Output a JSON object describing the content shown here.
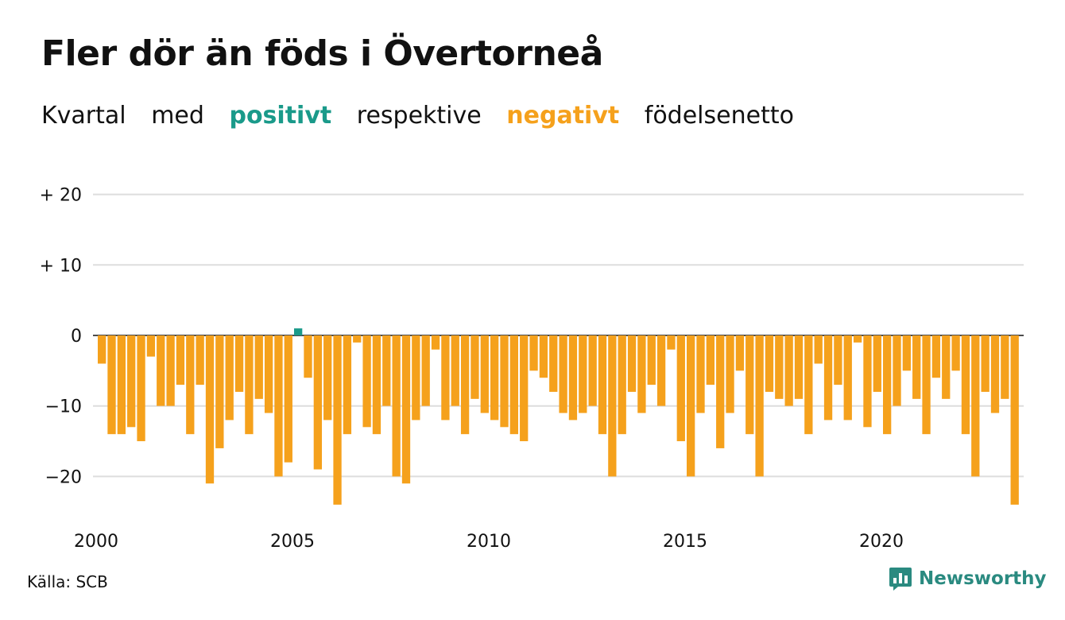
{
  "title": "Fler dör än föds i Övertorneå",
  "subtitle": {
    "w1": "Kvartal",
    "w2": "med",
    "positive": "positivt",
    "w3": "respektive",
    "negative": "negativt",
    "w4": "födelsenetto"
  },
  "source": "Källa: SCB",
  "brand": "Newsworthy",
  "colors": {
    "positive": "#1a9a8a",
    "negative": "#f5a11c",
    "grid": "#dddddd"
  },
  "chart_data": {
    "type": "bar",
    "x_start": "2000 Q1",
    "x_tick_labels": [
      "2000",
      "2005",
      "2010",
      "2015",
      "2020"
    ],
    "y_tick_values": [
      20,
      10,
      0,
      -10,
      -20
    ],
    "y_tick_labels": [
      "+ 20",
      "+ 10",
      "0",
      "−10",
      "−20"
    ],
    "ylim": [
      -25,
      20
    ],
    "grid": true,
    "values": [
      -4,
      -14,
      -14,
      -13,
      -15,
      -3,
      -10,
      -10,
      -7,
      -14,
      -7,
      -21,
      -16,
      -12,
      -8,
      -14,
      -9,
      -11,
      -20,
      -18,
      1,
      -6,
      -19,
      -12,
      -24,
      -14,
      -1,
      -13,
      -14,
      -10,
      -20,
      -21,
      -12,
      -10,
      -2,
      -12,
      -10,
      -14,
      -9,
      -11,
      -12,
      -13,
      -14,
      -15,
      -5,
      -6,
      -8,
      -11,
      -12,
      -11,
      -10,
      -14,
      -20,
      -14,
      -8,
      -11,
      -7,
      -10,
      -2,
      -15,
      -20,
      -11,
      -7,
      -16,
      -11,
      -5,
      -14,
      -20,
      -8,
      -9,
      -10,
      -9,
      -14,
      -4,
      -12,
      -7,
      -12,
      -1,
      -13,
      -8,
      -14,
      -10,
      -5,
      -9,
      -14,
      -6,
      -9,
      -5,
      -14,
      -20,
      -8,
      -11,
      -9,
      -24
    ]
  }
}
